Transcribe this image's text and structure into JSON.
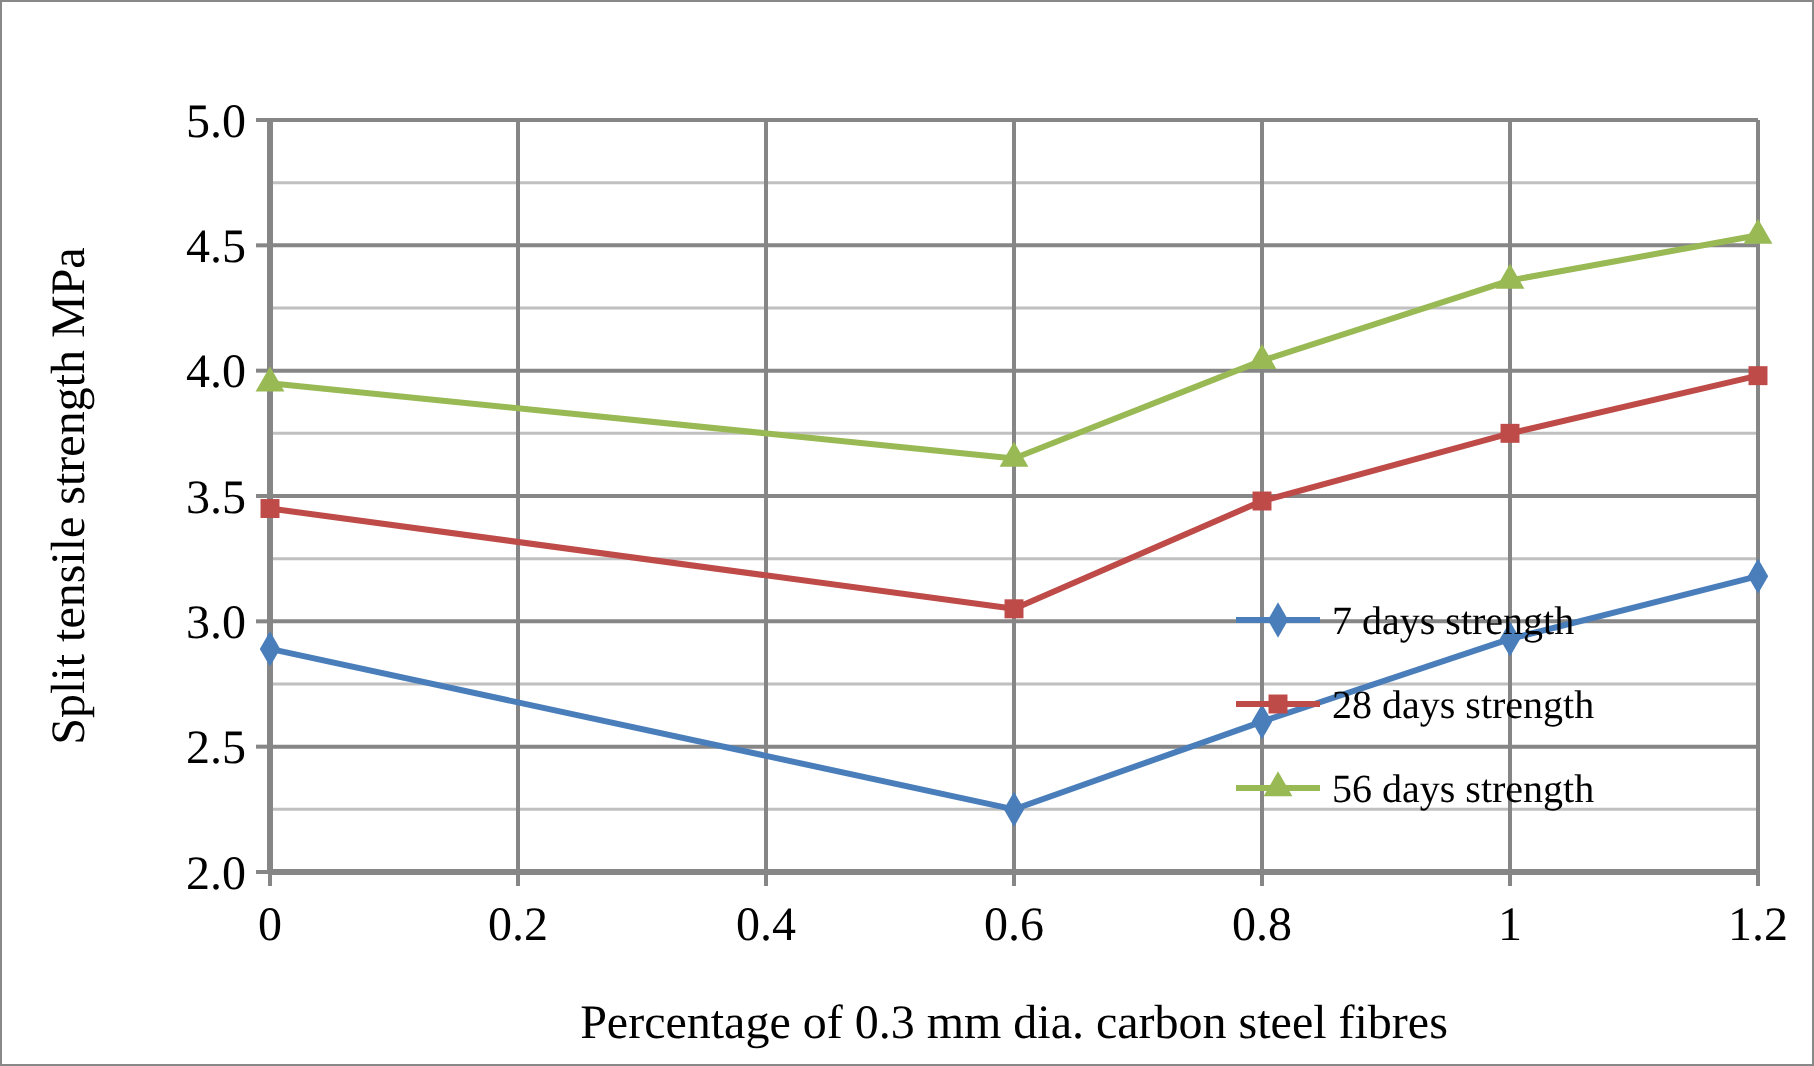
{
  "chart_data": {
    "type": "line",
    "xlabel": "Percentage of 0.3 mm dia. carbon steel fibres",
    "ylabel": "Split tensile strength MPa",
    "x": [
      0,
      0.6,
      0.8,
      1,
      1.2
    ],
    "series": [
      {
        "name": "7 days strength",
        "color": "#4a7ebb",
        "marker": "diamond",
        "values": [
          2.89,
          2.25,
          2.6,
          2.93,
          3.18
        ]
      },
      {
        "name": "28 days strength",
        "color": "#be4b48",
        "marker": "square",
        "values": [
          3.45,
          3.05,
          3.48,
          3.75,
          3.98
        ]
      },
      {
        "name": "56 days strength",
        "color": "#98b954",
        "marker": "triangle",
        "values": [
          3.95,
          3.65,
          4.04,
          4.36,
          4.54
        ]
      }
    ],
    "xlim": [
      0,
      1.2
    ],
    "xticks": [
      0,
      0.2,
      0.4,
      0.6,
      0.8,
      1,
      1.2
    ],
    "ylim": [
      2,
      5
    ],
    "yticks": [
      {
        "value": 2,
        "label": "2.0"
      },
      {
        "value": 2.25,
        "label": null
      },
      {
        "value": 2.5,
        "label": "2.5"
      },
      {
        "value": 2.75,
        "label": null
      },
      {
        "value": 3,
        "label": "3.0"
      },
      {
        "value": 3.25,
        "label": null
      },
      {
        "value": 3.5,
        "label": "3.5"
      },
      {
        "value": 3.75,
        "label": null
      },
      {
        "value": 4,
        "label": "4.0"
      },
      {
        "value": 4.25,
        "label": null
      },
      {
        "value": 4.5,
        "label": "4.5"
      },
      {
        "value": 4.75,
        "label": null
      },
      {
        "value": 5,
        "label": "5.0"
      }
    ],
    "grid": true,
    "legend": "bottom right",
    "line_style": "solid"
  }
}
